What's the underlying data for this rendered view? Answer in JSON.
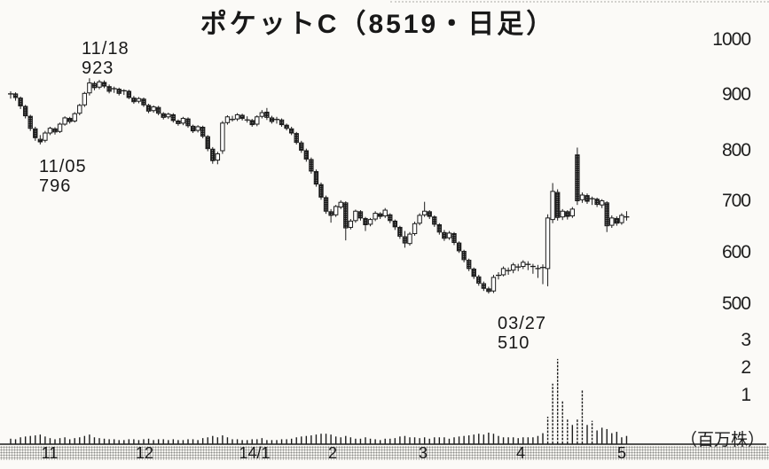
{
  "header": {
    "title": "ポケットC（8519・日足）"
  },
  "annotations": {
    "high": {
      "date": "11/18",
      "price": "923"
    },
    "low1": {
      "date": "11/05",
      "price": "796"
    },
    "low2": {
      "date": "03/27",
      "price": "510"
    }
  },
  "y_axis": {
    "price_ticks": [
      "1000",
      "900",
      "800",
      "700",
      "600",
      "500"
    ],
    "volume_ticks": [
      "3",
      "2",
      "1"
    ],
    "volume_unit": "（百万株）"
  },
  "x_axis": {
    "month_labels": [
      "11",
      "12",
      "14/1",
      "2",
      "3",
      "4",
      "5"
    ]
  },
  "chart_data": {
    "type": "candlestick",
    "title": "ポケットC（8519・日足）",
    "symbol": "ポケットC",
    "code": "8519",
    "interval": "日足",
    "price_ylim": [
      500,
      1000
    ],
    "volume_ylim_millions": [
      0,
      3.3
    ],
    "legend_position": "none",
    "grid": false,
    "x_month_labels": [
      "11",
      "12",
      "14/1",
      "2",
      "3",
      "4",
      "5"
    ],
    "key_points": [
      {
        "date": "11/05",
        "low": 796
      },
      {
        "date": "11/18",
        "high": 923
      },
      {
        "date": "03/27",
        "low": 510
      }
    ],
    "series_format": [
      "open",
      "high",
      "low",
      "close",
      "volume_millions"
    ],
    "candles": [
      [
        890,
        898,
        884,
        893,
        0.2
      ],
      [
        893,
        896,
        880,
        886,
        0.18
      ],
      [
        885,
        888,
        864,
        870,
        0.25
      ],
      [
        869,
        872,
        846,
        851,
        0.28
      ],
      [
        850,
        853,
        822,
        827,
        0.3
      ],
      [
        826,
        830,
        803,
        809,
        0.32
      ],
      [
        806,
        814,
        796,
        801,
        0.35
      ],
      [
        804,
        822,
        800,
        818,
        0.28
      ],
      [
        818,
        830,
        814,
        827,
        0.22
      ],
      [
        826,
        829,
        815,
        820,
        0.18
      ],
      [
        821,
        838,
        818,
        835,
        0.22
      ],
      [
        835,
        850,
        832,
        847,
        0.25
      ],
      [
        846,
        849,
        836,
        840,
        0.18
      ],
      [
        841,
        858,
        838,
        855,
        0.22
      ],
      [
        856,
        874,
        852,
        871,
        0.25
      ],
      [
        872,
        897,
        868,
        894,
        0.3
      ],
      [
        895,
        923,
        890,
        914,
        0.35
      ],
      [
        913,
        917,
        900,
        905,
        0.25
      ],
      [
        906,
        920,
        902,
        916,
        0.22
      ],
      [
        915,
        919,
        904,
        908,
        0.2
      ],
      [
        907,
        911,
        894,
        898,
        0.18
      ],
      [
        899,
        907,
        895,
        903,
        0.18
      ],
      [
        902,
        905,
        890,
        894,
        0.15
      ],
      [
        895,
        902,
        891,
        899,
        0.15
      ],
      [
        898,
        901,
        883,
        886,
        0.18
      ],
      [
        885,
        889,
        874,
        878,
        0.18
      ],
      [
        879,
        887,
        875,
        884,
        0.15
      ],
      [
        883,
        886,
        868,
        872,
        0.18
      ],
      [
        871,
        874,
        856,
        860,
        0.2
      ],
      [
        861,
        871,
        857,
        868,
        0.15
      ],
      [
        867,
        870,
        852,
        856,
        0.18
      ],
      [
        855,
        858,
        844,
        848,
        0.18
      ],
      [
        849,
        857,
        845,
        854,
        0.15
      ],
      [
        853,
        856,
        838,
        842,
        0.18
      ],
      [
        841,
        844,
        832,
        836,
        0.15
      ],
      [
        837,
        849,
        833,
        846,
        0.15
      ],
      [
        845,
        848,
        828,
        832,
        0.18
      ],
      [
        831,
        834,
        818,
        822,
        0.18
      ],
      [
        823,
        833,
        819,
        830,
        0.15
      ],
      [
        829,
        832,
        808,
        812,
        0.22
      ],
      [
        811,
        814,
        783,
        788,
        0.25
      ],
      [
        787,
        791,
        759,
        765,
        0.3
      ],
      [
        766,
        782,
        758,
        778,
        0.25
      ],
      [
        784,
        841,
        778,
        837,
        0.32
      ],
      [
        838,
        852,
        834,
        849,
        0.25
      ],
      [
        848,
        851,
        840,
        844,
        0.18
      ],
      [
        845,
        856,
        841,
        853,
        0.18
      ],
      [
        852,
        855,
        842,
        846,
        0.15
      ],
      [
        847,
        850,
        838,
        843,
        0.15
      ],
      [
        842,
        845,
        830,
        834,
        0.18
      ],
      [
        835,
        852,
        831,
        849,
        0.18
      ],
      [
        850,
        862,
        846,
        857,
        0.22
      ],
      [
        858,
        866,
        843,
        848,
        0.15
      ],
      [
        847,
        851,
        836,
        840,
        0.15
      ],
      [
        841,
        849,
        836,
        844,
        0.15
      ],
      [
        843,
        846,
        830,
        834,
        0.18
      ],
      [
        833,
        836,
        823,
        827,
        0.18
      ],
      [
        826,
        830,
        814,
        818,
        0.2
      ],
      [
        817,
        820,
        796,
        800,
        0.25
      ],
      [
        799,
        803,
        780,
        785,
        0.28
      ],
      [
        784,
        788,
        763,
        768,
        0.3
      ],
      [
        767,
        771,
        740,
        745,
        0.32
      ],
      [
        744,
        748,
        715,
        720,
        0.35
      ],
      [
        719,
        723,
        690,
        695,
        0.38
      ],
      [
        694,
        698,
        663,
        668,
        0.38
      ],
      [
        667,
        672,
        646,
        660,
        0.35
      ],
      [
        661,
        680,
        657,
        677,
        0.28
      ],
      [
        676,
        689,
        672,
        685,
        0.25
      ],
      [
        684,
        687,
        612,
        636,
        0.3
      ],
      [
        637,
        653,
        633,
        649,
        0.25
      ],
      [
        650,
        671,
        646,
        668,
        0.2
      ],
      [
        667,
        670,
        650,
        655,
        0.2
      ],
      [
        654,
        657,
        630,
        642,
        0.25
      ],
      [
        643,
        655,
        639,
        652,
        0.2
      ],
      [
        653,
        668,
        649,
        664,
        0.18
      ],
      [
        663,
        666,
        653,
        658,
        0.15
      ],
      [
        659,
        674,
        655,
        670,
        0.2
      ],
      [
        661,
        664,
        645,
        650,
        0.2
      ],
      [
        649,
        652,
        632,
        638,
        0.22
      ],
      [
        637,
        640,
        615,
        620,
        0.28
      ],
      [
        619,
        630,
        598,
        607,
        0.3
      ],
      [
        606,
        628,
        602,
        624,
        0.25
      ],
      [
        625,
        648,
        621,
        644,
        0.25
      ],
      [
        645,
        664,
        641,
        660,
        0.22
      ],
      [
        661,
        686,
        657,
        668,
        0.25
      ],
      [
        667,
        670,
        653,
        658,
        0.2
      ],
      [
        657,
        660,
        638,
        643,
        0.25
      ],
      [
        642,
        645,
        623,
        628,
        0.25
      ],
      [
        627,
        632,
        611,
        616,
        0.25
      ],
      [
        617,
        630,
        613,
        626,
        0.2
      ],
      [
        625,
        628,
        603,
        608,
        0.25
      ],
      [
        607,
        610,
        588,
        592,
        0.28
      ],
      [
        591,
        594,
        570,
        575,
        0.3
      ],
      [
        574,
        577,
        553,
        558,
        0.32
      ],
      [
        557,
        560,
        538,
        543,
        0.35
      ],
      [
        542,
        546,
        525,
        530,
        0.38
      ],
      [
        529,
        533,
        515,
        520,
        0.35
      ],
      [
        519,
        523,
        510,
        514,
        0.42
      ],
      [
        515,
        546,
        511,
        541,
        0.38
      ],
      [
        542,
        551,
        537,
        545,
        0.3
      ],
      [
        546,
        562,
        543,
        558,
        0.25
      ],
      [
        557,
        560,
        546,
        554,
        0.25
      ],
      [
        555,
        569,
        549,
        565,
        0.25
      ],
      [
        564,
        567,
        553,
        561,
        0.22
      ],
      [
        562,
        574,
        557,
        570,
        0.25
      ],
      [
        569,
        572,
        555,
        566,
        0.25
      ],
      [
        565,
        567,
        548,
        562,
        0.25
      ],
      [
        561,
        565,
        540,
        558,
        0.3
      ],
      [
        557,
        566,
        528,
        560,
        0.4
      ],
      [
        558,
        662,
        524,
        655,
        1.0
      ],
      [
        652,
        722,
        645,
        706,
        2.2
      ],
      [
        704,
        710,
        650,
        656,
        3.1
      ],
      [
        657,
        672,
        651,
        668,
        1.6
      ],
      [
        667,
        670,
        652,
        658,
        0.9
      ],
      [
        659,
        676,
        655,
        672,
        0.7
      ],
      [
        776,
        790,
        680,
        688,
        0.9
      ],
      [
        690,
        704,
        684,
        699,
        2.0
      ],
      [
        698,
        702,
        682,
        687,
        0.7
      ],
      [
        688,
        696,
        680,
        692,
        0.85
      ],
      [
        691,
        694,
        676,
        681,
        0.5
      ],
      [
        680,
        691,
        674,
        688,
        0.6
      ],
      [
        684,
        687,
        628,
        640,
        0.55
      ],
      [
        641,
        660,
        636,
        655,
        0.4
      ],
      [
        654,
        658,
        640,
        645,
        0.45
      ],
      [
        646,
        664,
        642,
        660,
        0.25
      ],
      [
        659,
        668,
        650,
        657,
        0.3
      ]
    ]
  }
}
